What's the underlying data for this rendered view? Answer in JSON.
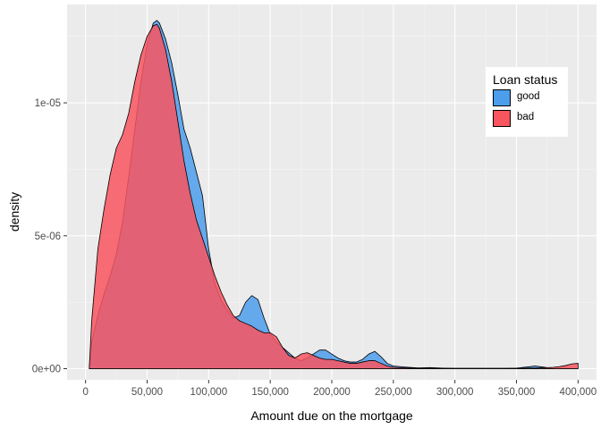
{
  "chart_data": {
    "type": "area",
    "title": "",
    "xlabel": "Amount due on the mortgage",
    "ylabel": "density",
    "xlim": [
      -15000,
      415000
    ],
    "ylim": [
      -4.2e-07,
      1.37e-05
    ],
    "x_ticks": [
      0,
      50000,
      100000,
      150000,
      200000,
      250000,
      300000,
      350000,
      400000
    ],
    "x_tick_labels": [
      "0",
      "50,000",
      "100,000",
      "150,000",
      "200,000",
      "250,000",
      "300,000",
      "350,000",
      "400,000"
    ],
    "y_ticks": [
      0,
      5e-06,
      1e-05
    ],
    "y_tick_labels": [
      "0e+00",
      "5e-06",
      "1e-05"
    ],
    "grid": true,
    "legend": {
      "title": "Loan status",
      "placement": "right-top"
    },
    "series": [
      {
        "name": "good",
        "color": "#4c9dec",
        "x": [
          3000,
          5000,
          10000,
          15000,
          20000,
          25000,
          30000,
          35000,
          40000,
          45000,
          50000,
          55000,
          58000,
          60000,
          65000,
          70000,
          75000,
          80000,
          85000,
          90000,
          95000,
          100000,
          105000,
          110000,
          115000,
          120000,
          125000,
          130000,
          135000,
          140000,
          145000,
          150000,
          155000,
          160000,
          165000,
          170000,
          175000,
          180000,
          185000,
          190000,
          195000,
          200000,
          205000,
          210000,
          215000,
          220000,
          225000,
          230000,
          235000,
          240000,
          245000,
          250000,
          260000,
          270000,
          280000,
          290000,
          300000,
          320000,
          340000,
          350000,
          360000,
          365000,
          370000,
          380000,
          390000,
          400000
        ],
        "y": [
          0,
          1e-06,
          2e-06,
          2.8e-06,
          3.5e-06,
          4.3e-06,
          5.5e-06,
          7.2e-06,
          9e-06,
          1.08e-05,
          1.22e-05,
          1.3e-05,
          1.31e-05,
          1.3e-05,
          1.24e-05,
          1.15e-05,
          1.03e-05,
          9e-06,
          8.3e-06,
          7.4e-06,
          6.5e-06,
          4.5e-06,
          3.2e-06,
          2.6e-06,
          2.2e-06,
          1.9e-06,
          2e-06,
          2.5e-06,
          2.75e-06,
          2.6e-06,
          1.9e-06,
          1.3e-06,
          1e-06,
          8e-07,
          6e-07,
          4e-07,
          3e-07,
          4e-07,
          5.5e-07,
          7e-07,
          7e-07,
          5.5e-07,
          4e-07,
          3e-07,
          2.5e-07,
          2.5e-07,
          3.5e-07,
          5.5e-07,
          6.5e-07,
          4.5e-07,
          2e-07,
          1e-07,
          6e-08,
          3e-08,
          4e-08,
          2e-08,
          1e-08,
          1e-08,
          1e-08,
          2e-08,
          7e-08,
          1e-07,
          7e-08,
          1e-08,
          1e-08,
          0
        ]
      },
      {
        "name": "bad",
        "color": "#f8555f",
        "x": [
          3000,
          5000,
          10000,
          15000,
          20000,
          25000,
          30000,
          35000,
          40000,
          45000,
          50000,
          55000,
          58000,
          60000,
          65000,
          70000,
          75000,
          80000,
          85000,
          90000,
          95000,
          100000,
          105000,
          110000,
          115000,
          120000,
          125000,
          130000,
          135000,
          140000,
          145000,
          150000,
          155000,
          160000,
          165000,
          170000,
          175000,
          180000,
          185000,
          190000,
          195000,
          200000,
          205000,
          210000,
          215000,
          220000,
          225000,
          230000,
          235000,
          240000,
          245000,
          250000,
          260000,
          270000,
          280000,
          290000,
          300000,
          320000,
          340000,
          350000,
          360000,
          370000,
          380000,
          385000,
          390000,
          395000,
          400000
        ],
        "y": [
          0,
          1.8e-06,
          4.5e-06,
          6e-06,
          7.3e-06,
          8.3e-06,
          8.8e-06,
          9.6e-06,
          1.08e-05,
          1.18e-05,
          1.25e-05,
          1.29e-05,
          1.295e-05,
          1.28e-05,
          1.2e-05,
          1.08e-05,
          9.3e-06,
          7.8e-06,
          6.6e-06,
          5.6e-06,
          4.9e-06,
          4.2e-06,
          3.5e-06,
          2.9e-06,
          2.4e-06,
          2e-06,
          1.8e-06,
          1.7e-06,
          1.6e-06,
          1.45e-06,
          1.35e-06,
          1.35e-06,
          1.2e-06,
          8e-07,
          5e-07,
          4e-07,
          5.5e-07,
          6e-07,
          5e-07,
          4e-07,
          3.5e-07,
          3.5e-07,
          3e-07,
          2.5e-07,
          2e-07,
          2e-07,
          2.5e-07,
          3e-07,
          3e-07,
          2e-07,
          1e-07,
          5e-08,
          3e-08,
          2e-08,
          1e-08,
          1e-08,
          1e-08,
          1e-08,
          1e-08,
          1e-08,
          2e-08,
          3e-08,
          5e-08,
          8e-08,
          1.2e-07,
          1.8e-07,
          2e-07
        ]
      }
    ]
  }
}
